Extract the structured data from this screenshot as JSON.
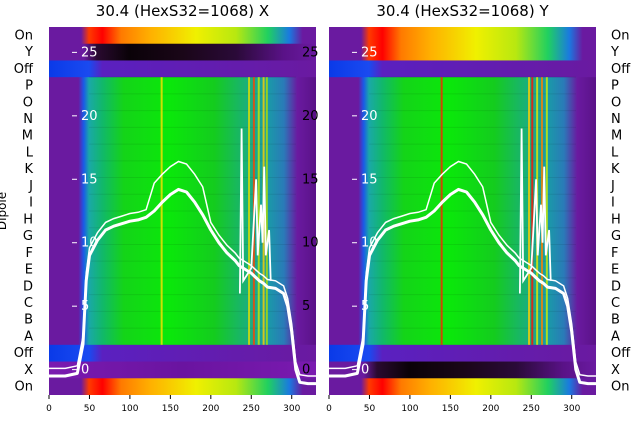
{
  "chart_data": [
    {
      "type": "heatmap",
      "title": "30.4 (HexS32=1068) X",
      "ylabel": "Dipole",
      "row_labels": [
        "On",
        "Y",
        "Off",
        "P",
        "O",
        "N",
        "M",
        "L",
        "K",
        "J",
        "I",
        "H",
        "G",
        "F",
        "E",
        "D",
        "C",
        "B",
        "A",
        "Off",
        "X",
        "On"
      ],
      "x_ticks": [
        0,
        50,
        100,
        150,
        200,
        250,
        300
      ],
      "xlim": [
        0,
        330
      ],
      "overlay_ticks": [
        0,
        5,
        10,
        15,
        20,
        25
      ],
      "overlay_ylim": [
        -2,
        27
      ]
    },
    {
      "type": "heatmap",
      "title": "30.4 (HexS32=1068) Y",
      "row_labels": [
        "On",
        "Y",
        "Off",
        "P",
        "O",
        "N",
        "M",
        "L",
        "K",
        "J",
        "I",
        "H",
        "G",
        "F",
        "E",
        "D",
        "C",
        "B",
        "A",
        "Off",
        "X",
        "On"
      ],
      "x_ticks": [
        0,
        50,
        100,
        150,
        200,
        250,
        300
      ],
      "xlim": [
        0,
        330
      ],
      "overlay_ticks": [
        0,
        5,
        10,
        15,
        20,
        25
      ],
      "overlay_ylim": [
        -2,
        27
      ]
    }
  ]
}
